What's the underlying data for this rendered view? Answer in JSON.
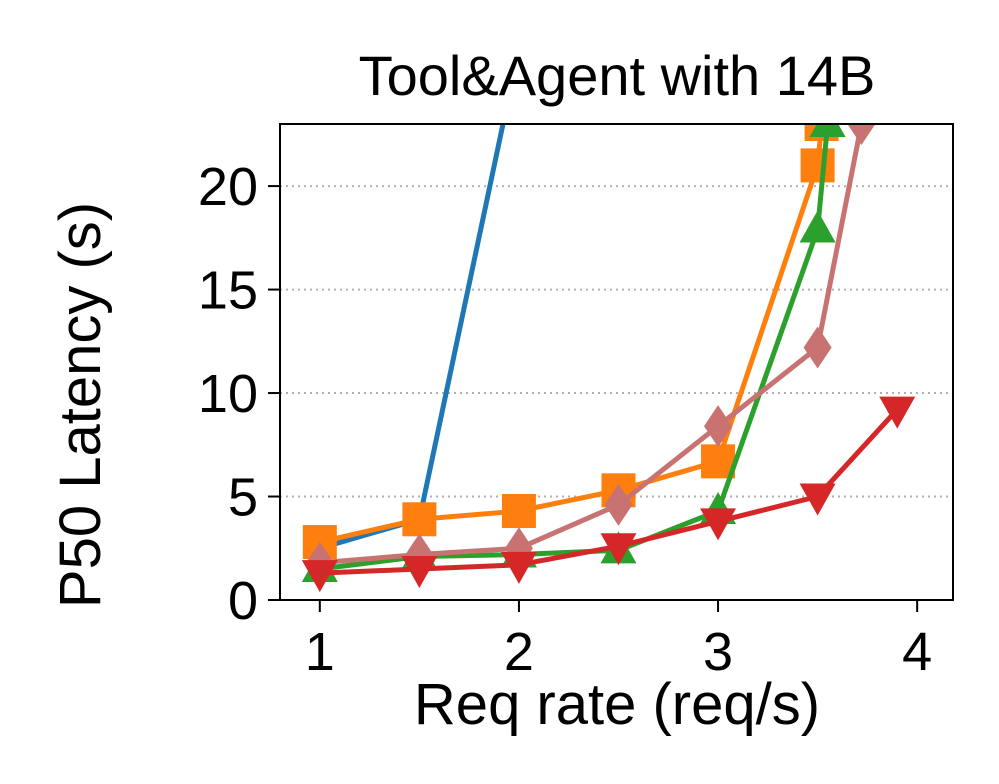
{
  "chart_data": {
    "type": "line",
    "title": "Tool&Agent with 14B",
    "xlabel": "Req rate (req/s)",
    "ylabel": "P50 Latency (s)",
    "xlim": [
      0.8,
      4.18
    ],
    "ylim": [
      0,
      23
    ],
    "xticks": [
      1,
      2,
      3,
      4
    ],
    "yticks": [
      0,
      5,
      10,
      15,
      20
    ],
    "grid": "y-dotted",
    "series": [
      {
        "color": "#1f77b4",
        "marker": "none",
        "x": [
          1,
          1.5,
          1.92
        ],
        "y": [
          2.5,
          3.9,
          23
        ]
      },
      {
        "color": "#ff7f0e",
        "marker": "square",
        "x": [
          1,
          1.5,
          2,
          2.5,
          3,
          3.5,
          3.52
        ],
        "y": [
          2.8,
          3.9,
          4.3,
          5.3,
          6.7,
          21,
          23
        ]
      },
      {
        "color": "#2ca02c",
        "marker": "triangle-up",
        "x": [
          1,
          1.5,
          2,
          2.5,
          3,
          3.5,
          3.55
        ],
        "y": [
          1.5,
          2.1,
          2.2,
          2.4,
          4.3,
          17.9,
          23
        ]
      },
      {
        "color": "#c87272",
        "marker": "diamond",
        "x": [
          1,
          1.5,
          2,
          2.5,
          3,
          3.5,
          3.72
        ],
        "y": [
          1.8,
          2.2,
          2.5,
          4.6,
          8.4,
          12.2,
          23
        ]
      },
      {
        "color": "#d62728",
        "marker": "triangle-down",
        "x": [
          1,
          1.5,
          2,
          2.5,
          3,
          3.5,
          3.9
        ],
        "y": [
          1.3,
          1.5,
          1.7,
          2.6,
          3.8,
          5,
          9.2
        ]
      }
    ]
  }
}
